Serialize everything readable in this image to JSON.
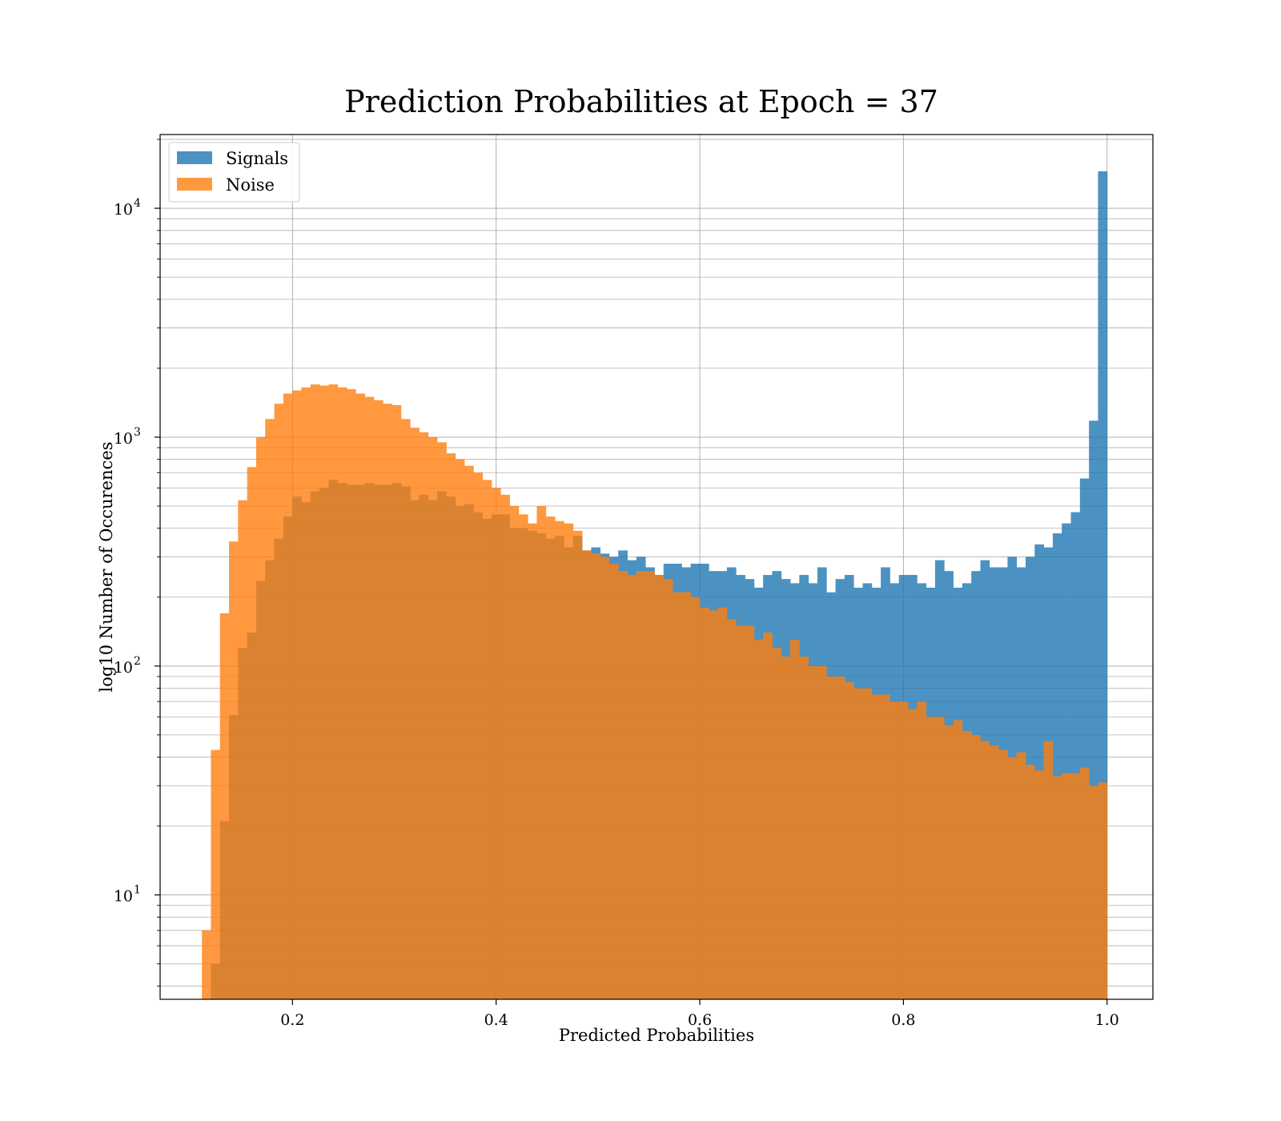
{
  "chart_data": {
    "type": "histogram",
    "title": "Prediction Probabilities at Epoch = 37",
    "xlabel": "Predicted Probabilities",
    "ylabel": "log10 Number of Occurences",
    "x_scale": "linear",
    "y_scale": "log",
    "xlim": [
      0.07,
      1.045
    ],
    "ylim": [
      3.5,
      21000
    ],
    "grid": true,
    "legend_position": "top-left",
    "x_ticks": [
      "0.2",
      "0.4",
      "0.6",
      "0.8",
      "1.0"
    ],
    "y_ticks": [
      {
        "base": "10",
        "exp": "4",
        "value": 10000
      },
      {
        "base": "10",
        "exp": "3",
        "value": 1000
      },
      {
        "base": "10",
        "exp": "2",
        "value": 100
      },
      {
        "base": "10",
        "exp": "1",
        "value": 10
      }
    ],
    "bin_edges_start": 0.111,
    "bin_edges_end": 1.0,
    "bin_count": 100,
    "series": [
      {
        "name": "Signals",
        "color": "#1f77b4",
        "opacity": 0.8,
        "values": [
          0,
          5,
          21,
          61,
          120,
          140,
          235,
          290,
          360,
          450,
          550,
          520,
          580,
          600,
          650,
          630,
          620,
          620,
          630,
          620,
          620,
          630,
          610,
          530,
          560,
          530,
          580,
          550,
          500,
          510,
          470,
          440,
          460,
          460,
          400,
          400,
          390,
          380,
          360,
          370,
          330,
          370,
          320,
          330,
          310,
          300,
          320,
          290,
          300,
          270,
          250,
          280,
          280,
          270,
          280,
          280,
          260,
          260,
          270,
          250,
          240,
          220,
          250,
          260,
          240,
          230,
          250,
          230,
          270,
          210,
          240,
          250,
          220,
          230,
          220,
          270,
          230,
          250,
          250,
          230,
          220,
          290,
          260,
          220,
          230,
          260,
          290,
          270,
          270,
          300,
          270,
          300,
          340,
          330,
          380,
          420,
          470,
          660,
          1180,
          14500
        ]
      },
      {
        "name": "Noise",
        "color": "#ff7f0e",
        "opacity": 0.8,
        "values": [
          7,
          43,
          170,
          350,
          530,
          740,
          1000,
          1200,
          1400,
          1550,
          1600,
          1650,
          1700,
          1680,
          1700,
          1650,
          1620,
          1550,
          1500,
          1450,
          1400,
          1380,
          1200,
          1100,
          1050,
          1000,
          950,
          850,
          800,
          750,
          700,
          650,
          600,
          560,
          500,
          460,
          420,
          500,
          450,
          430,
          420,
          390,
          320,
          310,
          300,
          280,
          260,
          250,
          260,
          260,
          250,
          240,
          210,
          210,
          200,
          180,
          175,
          180,
          160,
          150,
          150,
          130,
          140,
          120,
          110,
          130,
          110,
          100,
          100,
          90,
          90,
          85,
          80,
          80,
          75,
          75,
          70,
          70,
          65,
          70,
          60,
          60,
          55,
          58,
          52,
          50,
          47,
          45,
          43,
          40,
          42,
          37,
          35,
          47,
          33,
          34,
          34,
          36,
          30,
          31
        ]
      }
    ]
  }
}
